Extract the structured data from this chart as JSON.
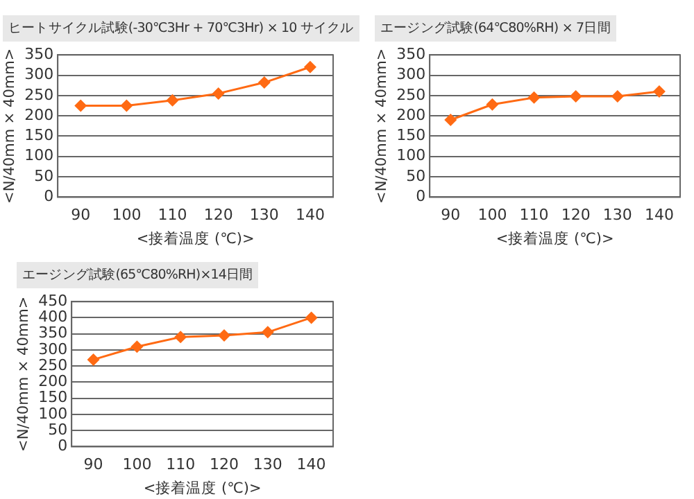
{
  "chart_data": [
    {
      "type": "line",
      "title": "ヒートサイクル試験(-30℃3Hr + 70℃3Hr) × 10 サイクル",
      "xlabel": "<接着温度 (℃)>",
      "ylabel": "<N/40mm × 40mm>",
      "categories": [
        "90",
        "100",
        "110",
        "120",
        "130",
        "140"
      ],
      "series": [
        {
          "color": "#ff6a13",
          "values": [
            225,
            225,
            238,
            255,
            282,
            320
          ]
        }
      ],
      "ylim": [
        0,
        350
      ],
      "yticks": [
        0,
        50,
        100,
        150,
        200,
        250,
        300,
        350
      ],
      "grid": "y",
      "legend": false,
      "marker": "diamond",
      "line_style": "solid"
    },
    {
      "type": "line",
      "title": "エージング試験(64℃80%RH) × 7日間",
      "xlabel": "<接着温度 (℃)>",
      "ylabel": "<N/40mm × 40mm>",
      "categories": [
        "90",
        "100",
        "110",
        "120",
        "130",
        "140"
      ],
      "series": [
        {
          "color": "#ff6a13",
          "values": [
            190,
            228,
            245,
            248,
            248,
            260
          ]
        }
      ],
      "ylim": [
        0,
        350
      ],
      "yticks": [
        0,
        50,
        100,
        150,
        200,
        250,
        300,
        350
      ],
      "grid": "y",
      "legend": false,
      "marker": "diamond",
      "line_style": "solid"
    },
    {
      "type": "line",
      "title": "エージング試験(65℃80%RH)×14日間",
      "xlabel": "<接着温度 (℃)>",
      "ylabel": "<N/40mm × 40mm>",
      "categories": [
        "90",
        "100",
        "110",
        "120",
        "130",
        "140"
      ],
      "series": [
        {
          "color": "#ff6a13",
          "values": [
            270,
            310,
            340,
            345,
            355,
            400
          ]
        }
      ],
      "ylim": [
        0,
        450
      ],
      "yticks": [
        0,
        50,
        100,
        150,
        200,
        250,
        300,
        350,
        400,
        450
      ],
      "grid": "y",
      "legend": false,
      "marker": "diamond",
      "line_style": "solid"
    }
  ]
}
